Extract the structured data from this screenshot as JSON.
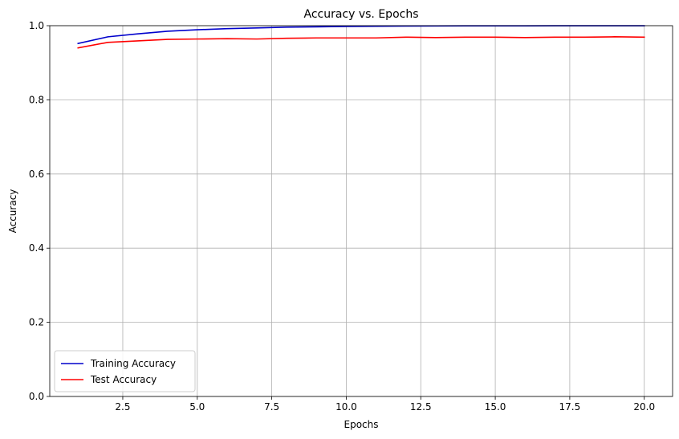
{
  "chart_data": {
    "type": "line",
    "title": "Accuracy vs. Epochs",
    "xlabel": "Epochs",
    "ylabel": "Accuracy",
    "xlim": [
      0.05,
      20.95
    ],
    "ylim": [
      0.0,
      1.0
    ],
    "xticks": [
      2.5,
      5.0,
      7.5,
      10.0,
      12.5,
      15.0,
      17.5,
      20.0
    ],
    "xtick_labels": [
      "2.5",
      "5.0",
      "7.5",
      "10.0",
      "12.5",
      "15.0",
      "17.5",
      "20.0"
    ],
    "yticks": [
      0.0,
      0.2,
      0.4,
      0.6,
      0.8,
      1.0
    ],
    "ytick_labels": [
      "0.0",
      "0.2",
      "0.4",
      "0.6",
      "0.8",
      "1.0"
    ],
    "grid": true,
    "legend_position": "lower-left",
    "x": [
      1,
      2,
      3,
      4,
      5,
      6,
      7,
      8,
      9,
      10,
      11,
      12,
      13,
      14,
      15,
      16,
      17,
      18,
      19,
      20
    ],
    "series": [
      {
        "name": "Training Accuracy",
        "color": "#0000cc",
        "values": [
          0.952,
          0.97,
          0.978,
          0.985,
          0.989,
          0.992,
          0.994,
          0.996,
          0.997,
          0.998,
          0.9985,
          0.999,
          0.9993,
          0.9995,
          0.9996,
          0.9997,
          0.9998,
          0.9998,
          0.9999,
          0.9999
        ]
      },
      {
        "name": "Test Accuracy",
        "color": "#ff0000",
        "values": [
          0.94,
          0.955,
          0.959,
          0.963,
          0.964,
          0.965,
          0.964,
          0.966,
          0.967,
          0.967,
          0.967,
          0.969,
          0.968,
          0.969,
          0.969,
          0.968,
          0.969,
          0.969,
          0.97,
          0.969
        ]
      }
    ]
  }
}
